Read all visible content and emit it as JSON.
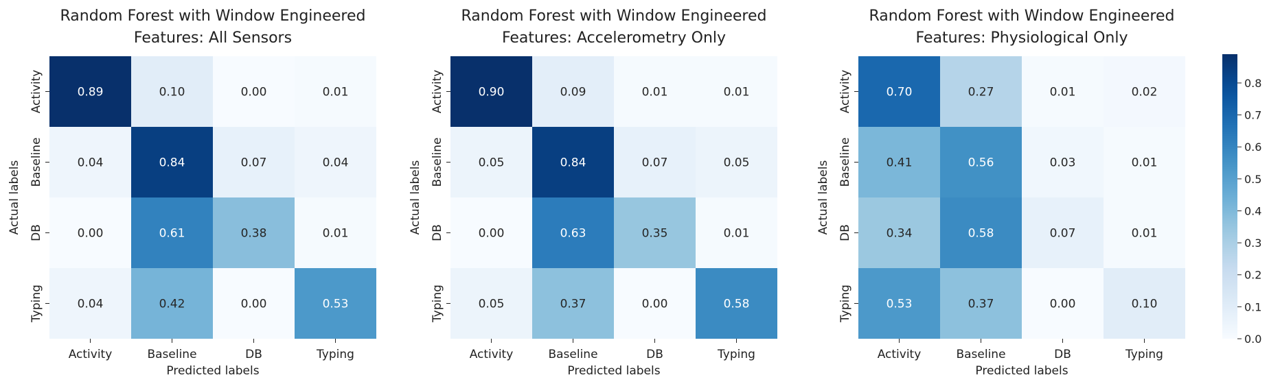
{
  "chart_data": [
    {
      "type": "heatmap",
      "title_lines": [
        "Random Forest with Window Engineered",
        "Features: All Sensors"
      ],
      "xlabel": "Predicted labels",
      "ylabel": "Actual labels",
      "x_categories": [
        "Activity",
        "Baseline",
        "DB",
        "Typing"
      ],
      "y_categories": [
        "Activity",
        "Baseline",
        "DB",
        "Typing"
      ],
      "values": [
        [
          0.89,
          0.1,
          0.0,
          0.01
        ],
        [
          0.04,
          0.84,
          0.07,
          0.04
        ],
        [
          0.0,
          0.61,
          0.38,
          0.01
        ],
        [
          0.04,
          0.42,
          0.0,
          0.53
        ]
      ]
    },
    {
      "type": "heatmap",
      "title_lines": [
        "Random Forest with Window Engineered",
        "Features: Accelerometry Only"
      ],
      "xlabel": "Predicted labels",
      "ylabel": "Actual labels",
      "x_categories": [
        "Activity",
        "Baseline",
        "DB",
        "Typing"
      ],
      "y_categories": [
        "Activity",
        "Baseline",
        "DB",
        "Typing"
      ],
      "values": [
        [
          0.9,
          0.09,
          0.01,
          0.01
        ],
        [
          0.05,
          0.84,
          0.07,
          0.05
        ],
        [
          0.0,
          0.63,
          0.35,
          0.01
        ],
        [
          0.05,
          0.37,
          0.0,
          0.58
        ]
      ]
    },
    {
      "type": "heatmap",
      "title_lines": [
        "Random Forest with Window Engineered",
        "Features: Physiological Only"
      ],
      "xlabel": "Predicted labels",
      "ylabel": "Actual labels",
      "x_categories": [
        "Activity",
        "Baseline",
        "DB",
        "Typing"
      ],
      "y_categories": [
        "Activity",
        "Baseline",
        "DB",
        "Typing"
      ],
      "values": [
        [
          0.7,
          0.27,
          0.01,
          0.02
        ],
        [
          0.41,
          0.56,
          0.03,
          0.01
        ],
        [
          0.34,
          0.58,
          0.07,
          0.01
        ],
        [
          0.53,
          0.37,
          0.0,
          0.1
        ]
      ],
      "colorbar": {
        "colormap": "Blues",
        "range": [
          0.0,
          0.89
        ],
        "ticks": [
          "0.0",
          "0.1",
          "0.2",
          "0.3",
          "0.4",
          "0.5",
          "0.6",
          "0.7",
          "0.8"
        ]
      }
    }
  ]
}
